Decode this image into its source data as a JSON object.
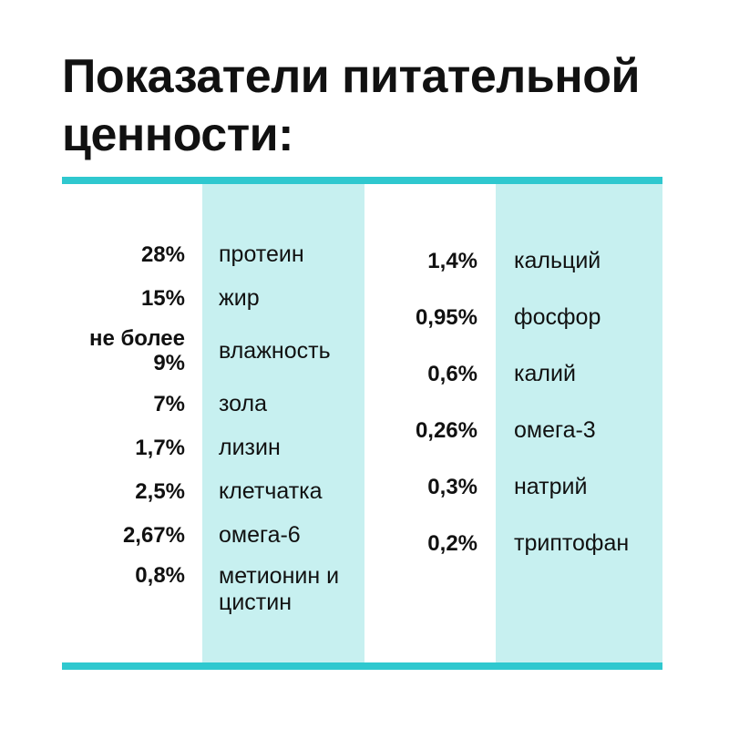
{
  "title": "Показатели питательной ценности:",
  "colors": {
    "accent": "#2fc8cf",
    "band": "#c7f0f0",
    "text": "#111111"
  },
  "left_column": [
    {
      "value": "28%",
      "name": "протеин"
    },
    {
      "value": "15%",
      "name": "жир"
    },
    {
      "value": "не более 9%",
      "name": "влажность"
    },
    {
      "value": "7%",
      "name": "зола"
    },
    {
      "value": "1,7%",
      "name": "лизин"
    },
    {
      "value": "2,5%",
      "name": "клетчатка"
    },
    {
      "value": "2,67%",
      "name": "омега-6"
    },
    {
      "value": "0,8%",
      "name": "метионин и цистин"
    }
  ],
  "right_column": [
    {
      "value": "1,4%",
      "name": "кальций"
    },
    {
      "value": "0,95%",
      "name": "фосфор"
    },
    {
      "value": "0,6%",
      "name": "калий"
    },
    {
      "value": "0,26%",
      "name": "омега-3"
    },
    {
      "value": "0,3%",
      "name": "натрий"
    },
    {
      "value": "0,2%",
      "name": "триптофан"
    }
  ]
}
